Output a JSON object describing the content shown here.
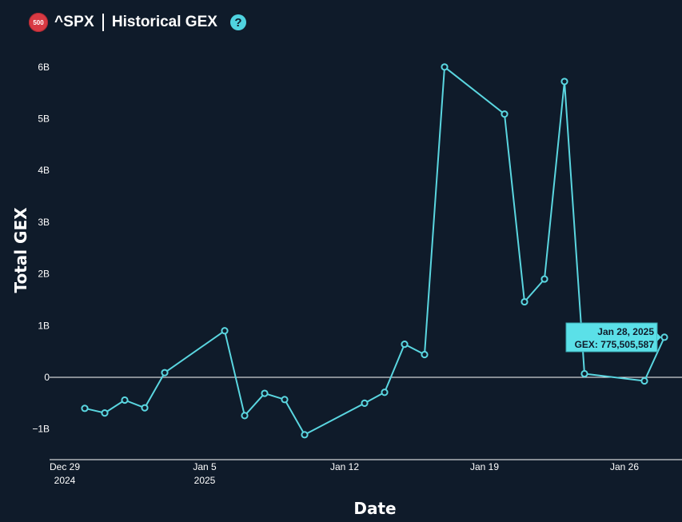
{
  "header": {
    "badge_text": "500",
    "ticker": "^SPX",
    "title": "Historical GEX",
    "help_symbol": "?"
  },
  "colors": {
    "background": "#0f1b2a",
    "line": "#5ad6e0",
    "accent": "#4fd3e0",
    "badge": "#d83a43"
  },
  "chart_data": {
    "type": "line",
    "xlabel": "Date",
    "ylabel": "Total GEX",
    "ylim": [
      -1.55,
      6.3
    ],
    "yticks": [
      {
        "value": -1,
        "label": "−1B"
      },
      {
        "value": 0,
        "label": "0"
      },
      {
        "value": 1,
        "label": "1B"
      },
      {
        "value": 2,
        "label": "2B"
      },
      {
        "value": 3,
        "label": "3B"
      },
      {
        "value": 4,
        "label": "4B"
      },
      {
        "value": 5,
        "label": "5B"
      },
      {
        "value": 6,
        "label": "6B"
      }
    ],
    "xticks": [
      {
        "date": "2024-12-29",
        "line1": "Dec 29",
        "line2": "2024"
      },
      {
        "date": "2025-01-05",
        "line1": "Jan 5",
        "line2": "2025"
      },
      {
        "date": "2025-01-12",
        "line1": "Jan 12",
        "line2": ""
      },
      {
        "date": "2025-01-19",
        "line1": "Jan 19",
        "line2": ""
      },
      {
        "date": "2025-01-26",
        "line1": "Jan 26",
        "line2": ""
      }
    ],
    "xlim": [
      "2024-12-29",
      "2025-01-29"
    ],
    "series": [
      {
        "points": [
          {
            "date": "2024-12-30",
            "value": -0.6
          },
          {
            "date": "2024-12-31",
            "value": -0.69
          },
          {
            "date": "2025-01-01",
            "value": -0.44
          },
          {
            "date": "2025-01-02",
            "value": -0.59
          },
          {
            "date": "2025-01-03",
            "value": 0.09
          },
          {
            "date": "2025-01-06",
            "value": 0.9
          },
          {
            "date": "2025-01-07",
            "value": -0.74
          },
          {
            "date": "2025-01-08",
            "value": -0.31
          },
          {
            "date": "2025-01-09",
            "value": -0.43
          },
          {
            "date": "2025-01-10",
            "value": -1.11
          },
          {
            "date": "2025-01-13",
            "value": -0.5
          },
          {
            "date": "2025-01-14",
            "value": -0.29
          },
          {
            "date": "2025-01-15",
            "value": 0.64
          },
          {
            "date": "2025-01-16",
            "value": 0.44
          },
          {
            "date": "2025-01-17",
            "value": 6.0
          },
          {
            "date": "2025-01-20",
            "value": 5.09
          },
          {
            "date": "2025-01-21",
            "value": 1.46
          },
          {
            "date": "2025-01-22",
            "value": 1.9
          },
          {
            "date": "2025-01-23",
            "value": 5.72
          },
          {
            "date": "2025-01-24",
            "value": 0.07
          },
          {
            "date": "2025-01-27",
            "value": -0.07
          },
          {
            "date": "2025-01-28",
            "value": 0.7755
          }
        ]
      }
    ],
    "tooltip": {
      "line1": "Jan 28, 2025",
      "line2": "GEX: 775,505,587"
    }
  }
}
